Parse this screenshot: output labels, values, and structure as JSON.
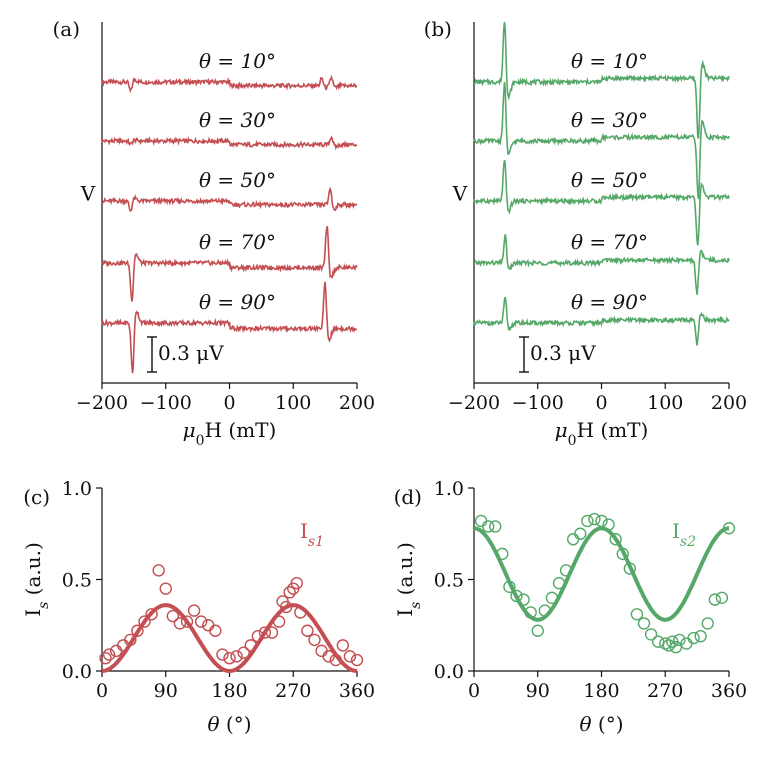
{
  "colors": {
    "red": "#c44e52",
    "green": "#55a868",
    "axis": "#111111"
  },
  "panels": [
    {
      "id": "a",
      "label": "(a)",
      "type": "stacked-traces",
      "color": "#c44e52",
      "xlabel": "μ0H (mT)",
      "ylabel": "V",
      "xlim": [
        -200,
        200
      ],
      "xticks": [
        -200,
        -100,
        0,
        100,
        200
      ],
      "xtick_labels": [
        "−200",
        "−100",
        "0",
        "100",
        "200"
      ],
      "scale_bar_label": "0.3 μV",
      "traces": [
        {
          "label": "θ = 10°",
          "offset": 0,
          "step": -0.04,
          "features": [
            {
              "field": -155,
              "dip": -0.11
            },
            {
              "field": 145,
              "dip": 0.09
            },
            {
              "field": 160,
              "dip": 0.1
            }
          ]
        },
        {
          "label": "θ = 30°",
          "offset": -1,
          "step": -0.04,
          "features": [
            {
              "field": -155,
              "dip": -0.04
            },
            {
              "field": 160,
              "dip": 0.1
            }
          ]
        },
        {
          "label": "θ = 50°",
          "offset": -2,
          "step": -0.04,
          "features": [
            {
              "field": -155,
              "dip": -0.12
            },
            {
              "field": 158,
              "dip": 0.2
            }
          ]
        },
        {
          "label": "θ = 70°",
          "offset": -3,
          "step": -0.05,
          "features": [
            {
              "field": -153,
              "dip": -0.45
            },
            {
              "field": 153,
              "dip": 0.5
            }
          ]
        },
        {
          "label": "θ = 90°",
          "offset": -4,
          "step": -0.06,
          "features": [
            {
              "field": -152,
              "dip": -0.6
            },
            {
              "field": 150,
              "dip": 0.55
            }
          ]
        }
      ]
    },
    {
      "id": "b",
      "label": "(b)",
      "type": "stacked-traces",
      "color": "#55a868",
      "xlabel": "μ0H (mT)",
      "ylabel": "V",
      "xlim": [
        -200,
        200
      ],
      "xticks": [
        -200,
        -100,
        0,
        100,
        200
      ],
      "xtick_labels": [
        "−200",
        "−100",
        "0",
        "100",
        "200"
      ],
      "scale_bar_label": "0.3 μV",
      "traces": [
        {
          "label": "θ = 10°",
          "offset": 0,
          "step": 0.04,
          "features": [
            {
              "field": -152,
              "dip": 0.75
            },
            {
              "field": 152,
              "dip": -0.75
            }
          ]
        },
        {
          "label": "θ = 30°",
          "offset": -1,
          "step": 0.04,
          "features": [
            {
              "field": -152,
              "dip": 0.7
            },
            {
              "field": 152,
              "dip": -0.75
            }
          ]
        },
        {
          "label": "θ = 50°",
          "offset": -2,
          "step": 0.04,
          "features": [
            {
              "field": -152,
              "dip": 0.5
            },
            {
              "field": 151,
              "dip": -0.6
            }
          ]
        },
        {
          "label": "θ = 70°",
          "offset": -3,
          "step": 0.03,
          "features": [
            {
              "field": -151,
              "dip": 0.33
            },
            {
              "field": 150,
              "dip": -0.4
            }
          ]
        },
        {
          "label": "θ = 90°",
          "offset": -4,
          "step": 0.03,
          "features": [
            {
              "field": -151,
              "dip": 0.3
            },
            {
              "field": 150,
              "dip": -0.3
            }
          ]
        }
      ]
    },
    {
      "id": "c",
      "label": "(c)",
      "type": "scatter+fit",
      "color": "#c44e52",
      "xlabel": "θ (°)",
      "ylabel": "I_s (a.u.)",
      "xlim": [
        0,
        360
      ],
      "ylim": [
        0,
        1
      ],
      "xticks": [
        0,
        90,
        180,
        270,
        360
      ],
      "yticks": [
        0,
        0.5,
        1
      ],
      "xtick_labels": [
        "0",
        "90",
        "180",
        "270",
        "360"
      ],
      "ytick_labels": [
        "0.0",
        "0.5",
        "1.0"
      ],
      "series_label": "I_s1",
      "fit": {
        "form": "A*sin^2(theta)+B",
        "A": 0.36,
        "B": 0.0
      },
      "points": [
        [
          5,
          0.07
        ],
        [
          10,
          0.09
        ],
        [
          20,
          0.11
        ],
        [
          30,
          0.14
        ],
        [
          40,
          0.17
        ],
        [
          50,
          0.22
        ],
        [
          60,
          0.27
        ],
        [
          70,
          0.31
        ],
        [
          80,
          0.55
        ],
        [
          90,
          0.45
        ],
        [
          100,
          0.3
        ],
        [
          110,
          0.26
        ],
        [
          120,
          0.27
        ],
        [
          130,
          0.33
        ],
        [
          140,
          0.27
        ],
        [
          150,
          0.25
        ],
        [
          160,
          0.22
        ],
        [
          170,
          0.09
        ],
        [
          180,
          0.07
        ],
        [
          190,
          0.08
        ],
        [
          200,
          0.1
        ],
        [
          210,
          0.14
        ],
        [
          220,
          0.19
        ],
        [
          230,
          0.21
        ],
        [
          240,
          0.21
        ],
        [
          250,
          0.27
        ],
        [
          255,
          0.38
        ],
        [
          260,
          0.35
        ],
        [
          265,
          0.43
        ],
        [
          270,
          0.45
        ],
        [
          275,
          0.48
        ],
        [
          280,
          0.32
        ],
        [
          290,
          0.22
        ],
        [
          300,
          0.17
        ],
        [
          310,
          0.11
        ],
        [
          320,
          0.08
        ],
        [
          330,
          0.06
        ],
        [
          340,
          0.14
        ],
        [
          350,
          0.08
        ],
        [
          360,
          0.06
        ]
      ]
    },
    {
      "id": "d",
      "label": "(d)",
      "type": "scatter+fit",
      "color": "#55a868",
      "xlabel": "θ (°)",
      "ylabel": "I_s (a.u.)",
      "xlim": [
        0,
        360
      ],
      "ylim": [
        0,
        1
      ],
      "xticks": [
        0,
        90,
        180,
        270,
        360
      ],
      "yticks": [
        0,
        0.5,
        1
      ],
      "xtick_labels": [
        "0",
        "90",
        "180",
        "270",
        "360"
      ],
      "ytick_labels": [
        "0.0",
        "0.5",
        "1.0"
      ],
      "series_label": "I_s2",
      "fit": {
        "form": "A*cos^2(theta)+B",
        "A": 0.5,
        "B": 0.28
      },
      "points": [
        [
          10,
          0.82
        ],
        [
          20,
          0.79
        ],
        [
          30,
          0.79
        ],
        [
          40,
          0.64
        ],
        [
          50,
          0.46
        ],
        [
          60,
          0.41
        ],
        [
          70,
          0.39
        ],
        [
          80,
          0.32
        ],
        [
          90,
          0.22
        ],
        [
          100,
          0.33
        ],
        [
          110,
          0.4
        ],
        [
          120,
          0.48
        ],
        [
          130,
          0.55
        ],
        [
          140,
          0.72
        ],
        [
          150,
          0.75
        ],
        [
          160,
          0.82
        ],
        [
          170,
          0.83
        ],
        [
          180,
          0.82
        ],
        [
          190,
          0.8
        ],
        [
          200,
          0.72
        ],
        [
          210,
          0.64
        ],
        [
          220,
          0.56
        ],
        [
          230,
          0.31
        ],
        [
          240,
          0.26
        ],
        [
          250,
          0.2
        ],
        [
          260,
          0.16
        ],
        [
          270,
          0.15
        ],
        [
          275,
          0.14
        ],
        [
          280,
          0.16
        ],
        [
          285,
          0.13
        ],
        [
          290,
          0.17
        ],
        [
          300,
          0.15
        ],
        [
          310,
          0.18
        ],
        [
          320,
          0.19
        ],
        [
          330,
          0.26
        ],
        [
          340,
          0.39
        ],
        [
          350,
          0.4
        ],
        [
          360,
          0.78
        ]
      ]
    }
  ]
}
